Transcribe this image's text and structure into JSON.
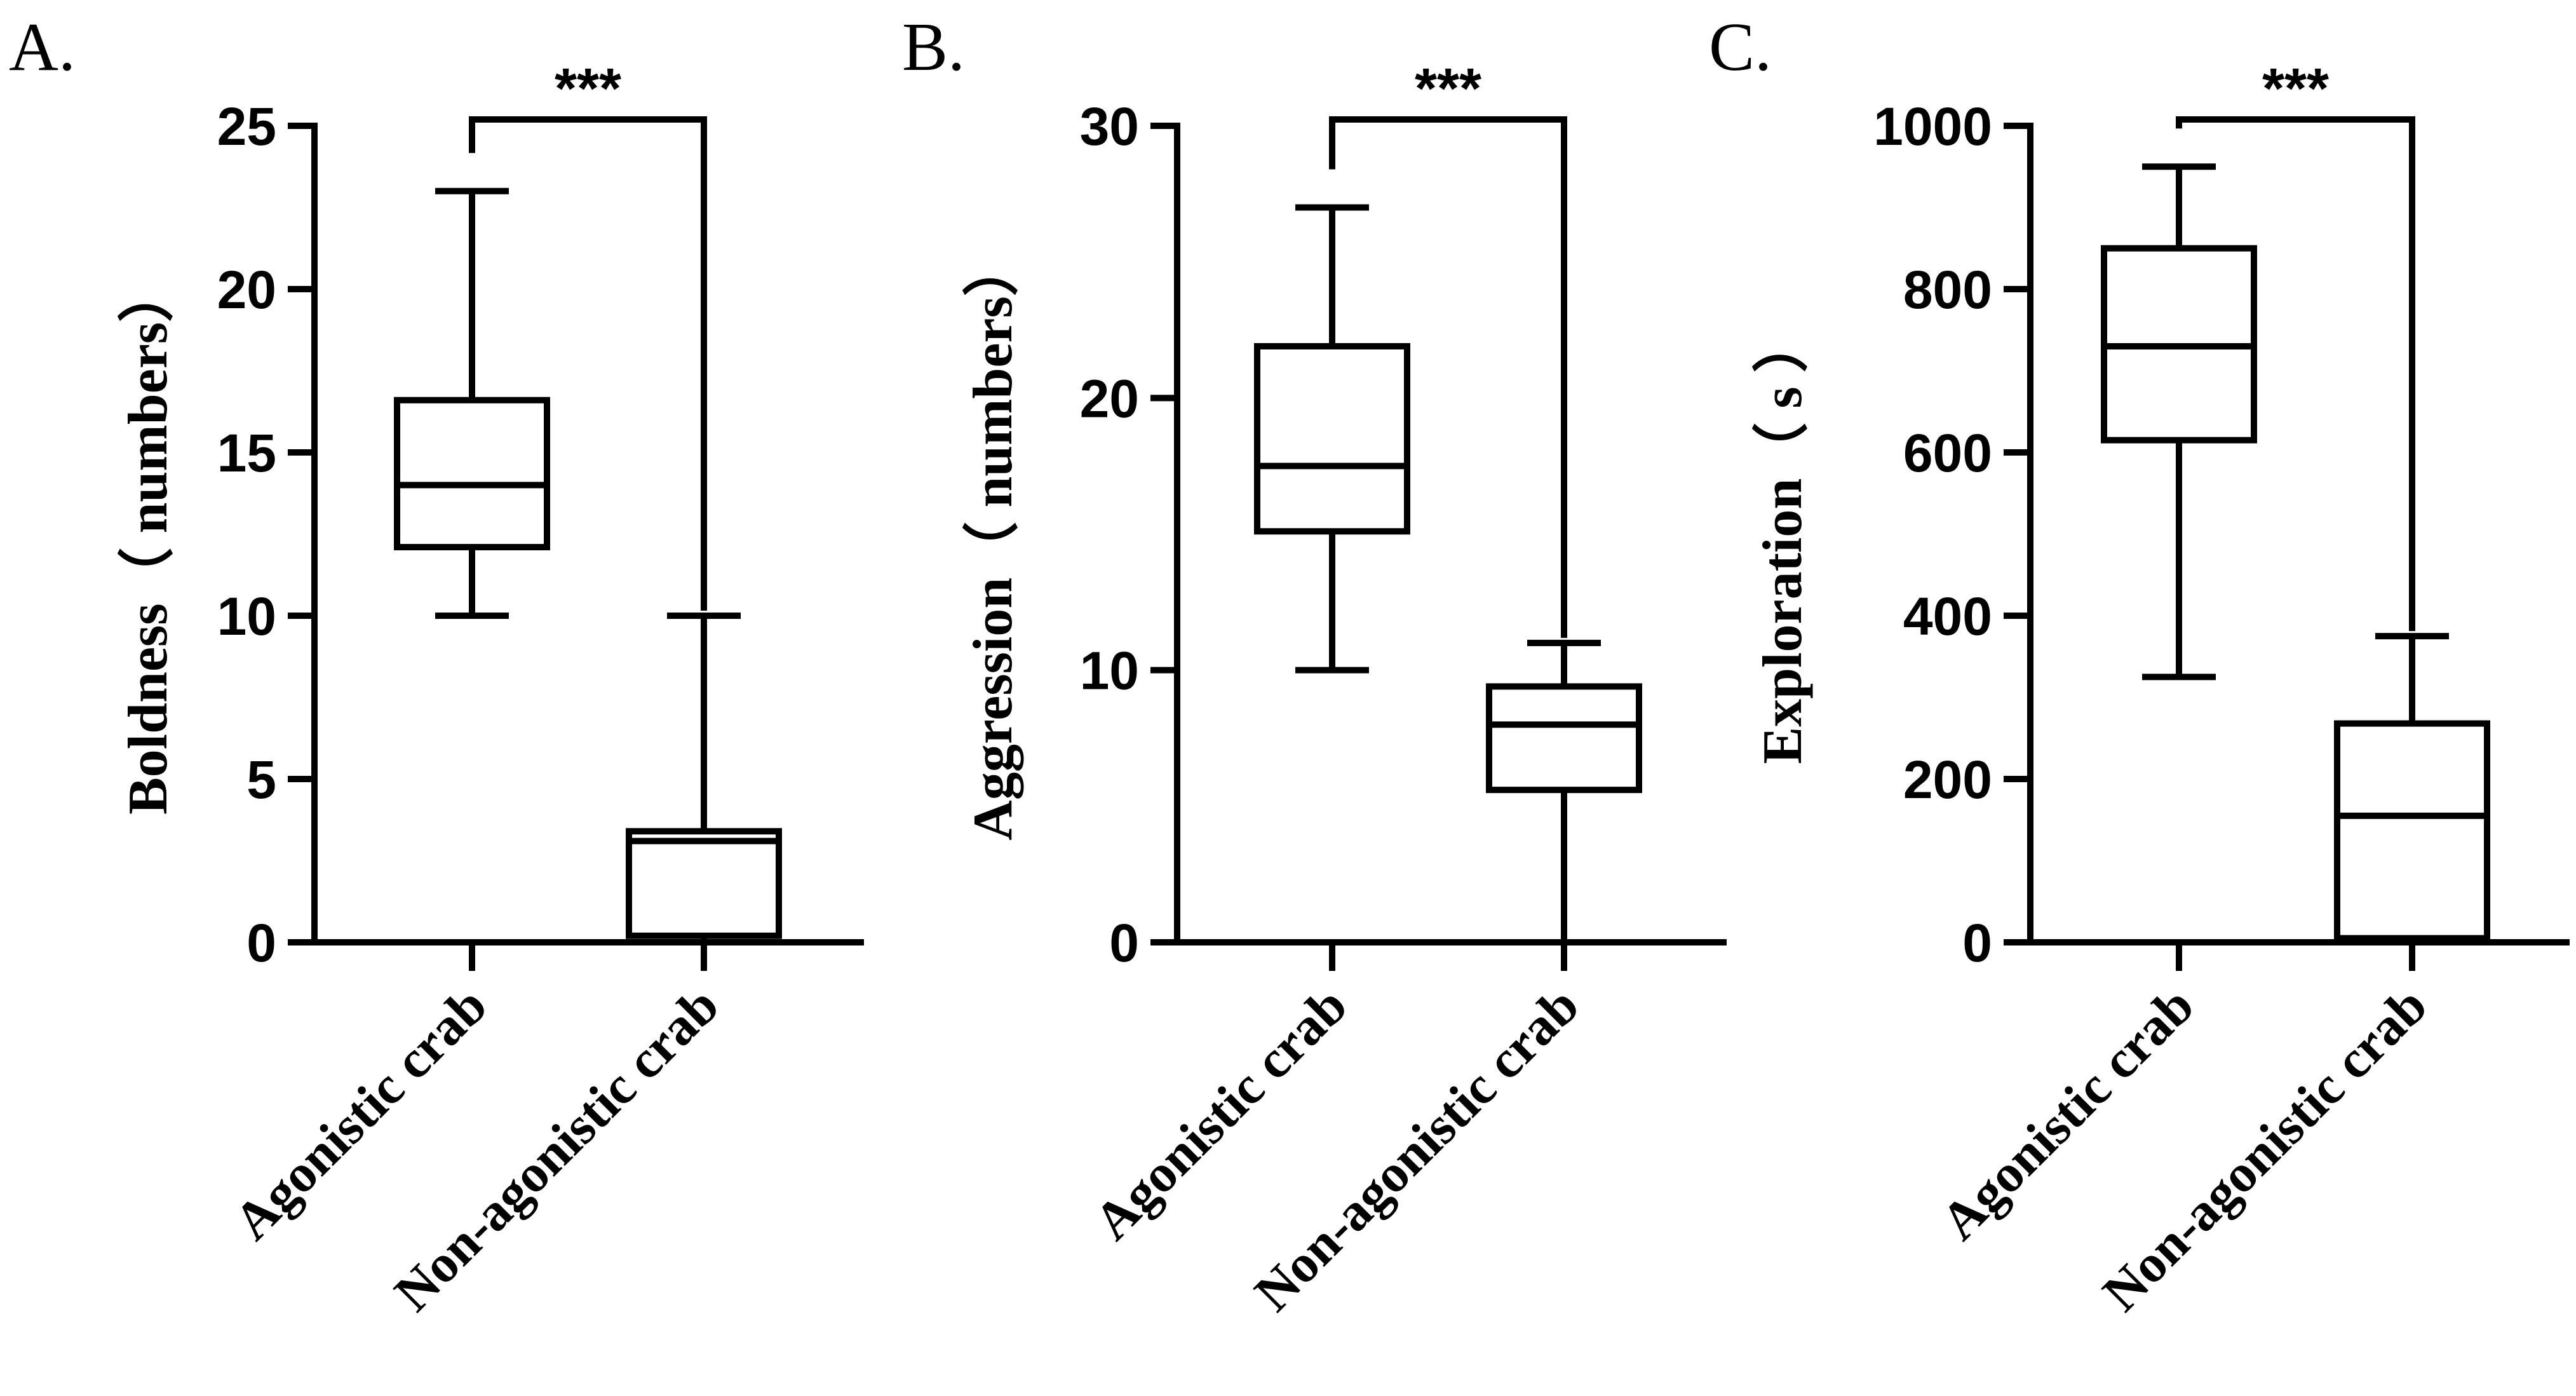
{
  "chart_data": [
    {
      "type": "box",
      "panel_label": "A.",
      "ylabel": "Boldness（ numbers）",
      "ylim": [
        0,
        25
      ],
      "yticks": [
        "0",
        "5",
        "10",
        "15",
        "20",
        "25"
      ],
      "categories": [
        "Agonistic crab",
        "Non-agonistic crab"
      ],
      "boxes": [
        {
          "name": "Agonistic crab",
          "min": 10,
          "q1": 12.1,
          "median": 14,
          "q3": 16.6,
          "max": 23
        },
        {
          "name": "Non-agonistic crab",
          "min": 0,
          "q1": 0.2,
          "median": 3.1,
          "q3": 3.4,
          "max": 10
        }
      ],
      "significance": "***"
    },
    {
      "type": "box",
      "panel_label": "B.",
      "ylabel": "Aggression（ numbers）",
      "ylim": [
        0,
        30
      ],
      "yticks": [
        "0",
        "10",
        "20",
        "30"
      ],
      "categories": [
        "Agonistic crab",
        "Non-agonistic crab"
      ],
      "boxes": [
        {
          "name": "Agonistic crab",
          "min": 10,
          "q1": 15.1,
          "median": 17.5,
          "q3": 21.9,
          "max": 27
        },
        {
          "name": "Non-agonistic crab",
          "min": 0,
          "q1": 5.6,
          "median": 8,
          "q3": 9.4,
          "max": 11
        }
      ],
      "significance": "***"
    },
    {
      "type": "box",
      "panel_label": "C.",
      "ylabel": "Exploration（ s ）",
      "ylim": [
        0,
        1000
      ],
      "yticks": [
        "0",
        "200",
        "400",
        "600",
        "800",
        "1000"
      ],
      "categories": [
        "Agonistic crab",
        "Non-agonistic crab"
      ],
      "boxes": [
        {
          "name": "Agonistic crab",
          "min": 325,
          "q1": 615,
          "median": 730,
          "q3": 850,
          "max": 950
        },
        {
          "name": "Non-agonistic crab",
          "min": 0,
          "q1": 5,
          "median": 155,
          "q3": 268,
          "max": 375
        }
      ],
      "significance": "***"
    }
  ]
}
